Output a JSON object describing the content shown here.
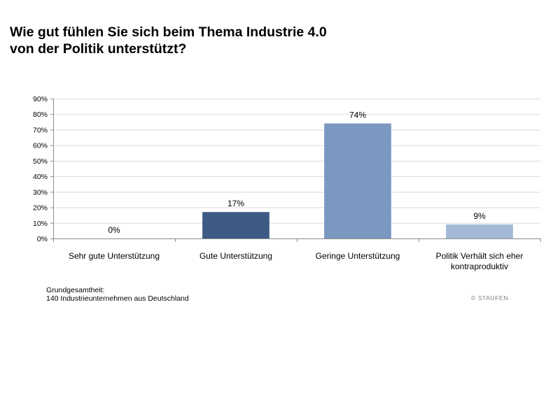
{
  "header": {
    "title_line1": "Wie gut fühlen Sie sich beim Thema Industrie 4.0",
    "title_line2": "von der Politik unterstützt?"
  },
  "chart_data": {
    "type": "bar",
    "categories": [
      [
        "Sehr gute Unterstützung"
      ],
      [
        "Gute Unterstützung"
      ],
      [
        "Geringe Unterstützung"
      ],
      [
        "Politik Verhält sich eher",
        "kontraproduktiv"
      ]
    ],
    "values": [
      0,
      17,
      74,
      9
    ],
    "value_labels": [
      "0%",
      "17%",
      "74%",
      "9%"
    ],
    "bar_colors": [
      "#3D5A85",
      "#3D5A85",
      "#7A98C0",
      "#A3B9D7"
    ],
    "y_ticks": [
      "0%",
      "10%",
      "20%",
      "30%",
      "40%",
      "50%",
      "60%",
      "70%",
      "80%",
      "90%"
    ],
    "ylim": [
      0,
      90
    ],
    "grid": true,
    "legend": "none"
  },
  "footnote": {
    "line1": "Grundgesamtheit:",
    "line2": "140 Industrieunternehmen aus Deutschland"
  },
  "copyright": "© STAUFEN."
}
